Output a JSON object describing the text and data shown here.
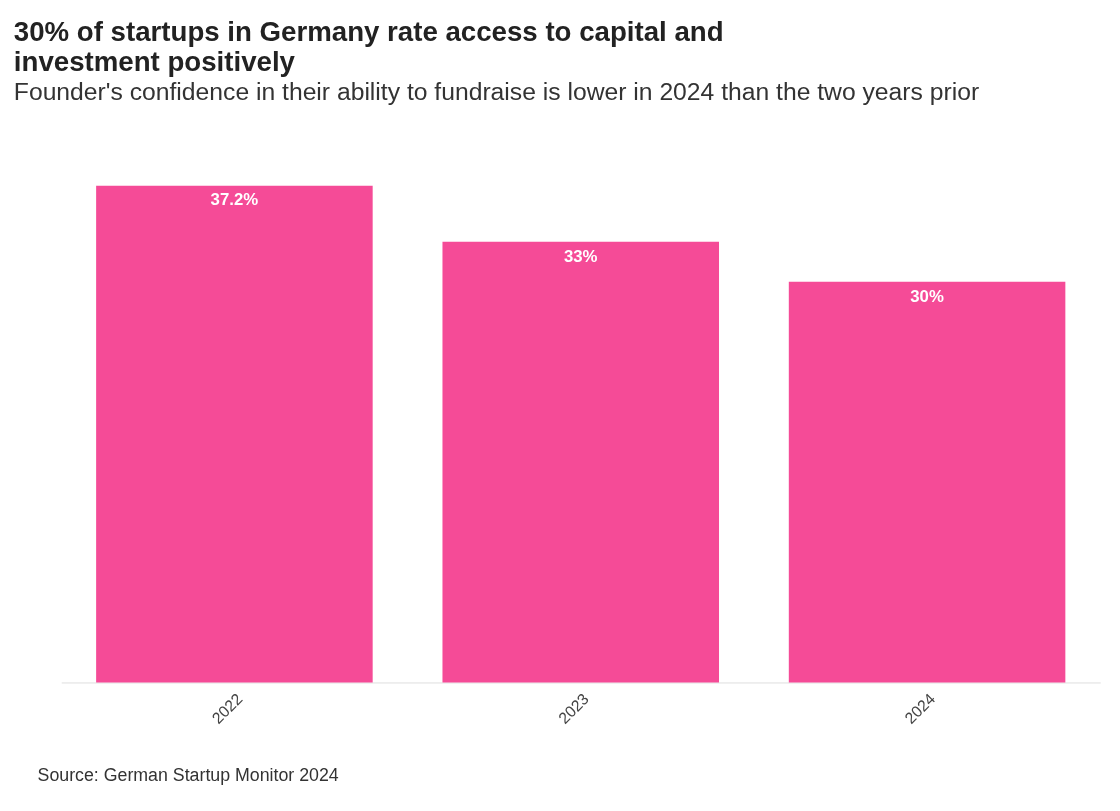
{
  "chart_data": {
    "type": "bar",
    "title": "30% of startups in Germany rate access to capital and investment positively",
    "subtitle": "Founder's confidence in their ability to fundraise is lower in 2024 than the two years prior",
    "categories": [
      "2022",
      "2023",
      "2024"
    ],
    "values": [
      37.2,
      33,
      30
    ],
    "value_labels": [
      "37.2%",
      "33%",
      "30%"
    ],
    "color": "#f54b97",
    "grid": false,
    "annotations": [
      "Source: German Startup Monitor 2024"
    ]
  }
}
